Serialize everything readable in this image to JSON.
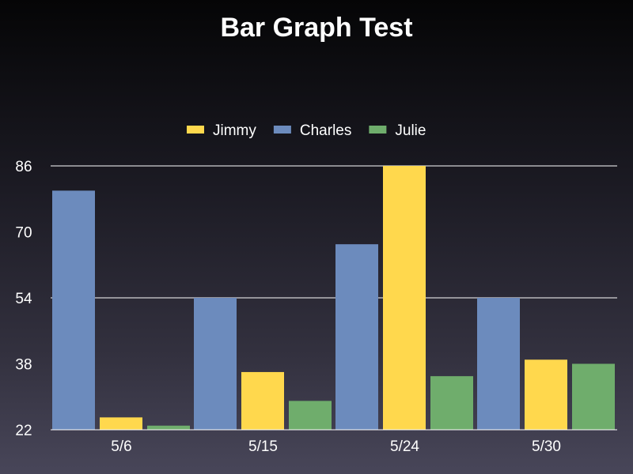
{
  "chart_data": {
    "type": "bar",
    "title": "Bar Graph Test",
    "categories": [
      "5/6",
      "5/15",
      "5/24",
      "5/30"
    ],
    "series": [
      {
        "name": "Charles",
        "color": "#6c8bbd",
        "values": [
          80,
          54,
          67,
          54
        ]
      },
      {
        "name": "Jimmy",
        "color": "#ffd84d",
        "values": [
          25,
          36,
          86,
          39
        ]
      },
      {
        "name": "Julie",
        "color": "#6fad6c",
        "values": [
          23,
          29,
          35,
          38
        ]
      }
    ],
    "legend_order": [
      "Jimmy",
      "Charles",
      "Julie"
    ],
    "ylim": [
      22,
      86
    ],
    "yticks": [
      22,
      38,
      54,
      70,
      86
    ],
    "gridlines": [
      54,
      86
    ],
    "legend_position": "top"
  }
}
